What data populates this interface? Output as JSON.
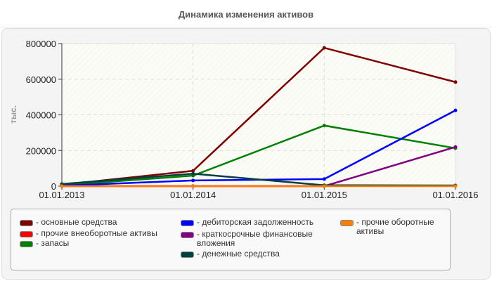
{
  "chart_data": {
    "type": "line",
    "title": "Динамика изменения активов",
    "xlabel": "",
    "ylabel": "тыс.",
    "x": [
      "01.01.2013",
      "01.01.2014",
      "01.01.2015",
      "01.01.2016"
    ],
    "ylim": [
      0,
      800000
    ],
    "yticks": [
      "0",
      "200000",
      "400000",
      "600000",
      "800000"
    ],
    "grid": true,
    "legend_position": "bottom",
    "series": [
      {
        "name": "основные средства",
        "color": "#800000",
        "values": [
          8000,
          86000,
          776000,
          584000
        ]
      },
      {
        "name": "прочие внеоборотные активы",
        "color": "#ff0000",
        "values": [
          1000,
          1000,
          1000,
          1000
        ]
      },
      {
        "name": "запасы",
        "color": "#008000",
        "values": [
          5000,
          59000,
          340000,
          213000
        ]
      },
      {
        "name": "дебиторская задолженность",
        "color": "#0000ff",
        "values": [
          3000,
          32000,
          40000,
          425000
        ]
      },
      {
        "name": "краткосрочные финансовые вложения",
        "color": "#800080",
        "values": [
          0,
          0,
          0,
          220000
        ]
      },
      {
        "name": "денежные средства",
        "color": "#004040",
        "values": [
          12000,
          70000,
          5000,
          4000
        ]
      },
      {
        "name": "прочие оборотные активы",
        "color": "#ff8000",
        "values": [
          0,
          0,
          0,
          0
        ]
      }
    ]
  },
  "legend": {
    "items": [
      {
        "label": "- основные средства",
        "color": "#800000"
      },
      {
        "label": "- прочие внеоборотные активы",
        "color": "#ff0000"
      },
      {
        "label": "- запасы",
        "color": "#008000"
      },
      {
        "label": "- дебиторская задолженность",
        "color": "#0000ff"
      },
      {
        "label": "- краткосрочные финансовые вложения",
        "color": "#800080"
      },
      {
        "label": "- денежные средства",
        "color": "#004040"
      },
      {
        "label": "- прочие оборотные активы",
        "color": "#ff8000"
      }
    ]
  }
}
